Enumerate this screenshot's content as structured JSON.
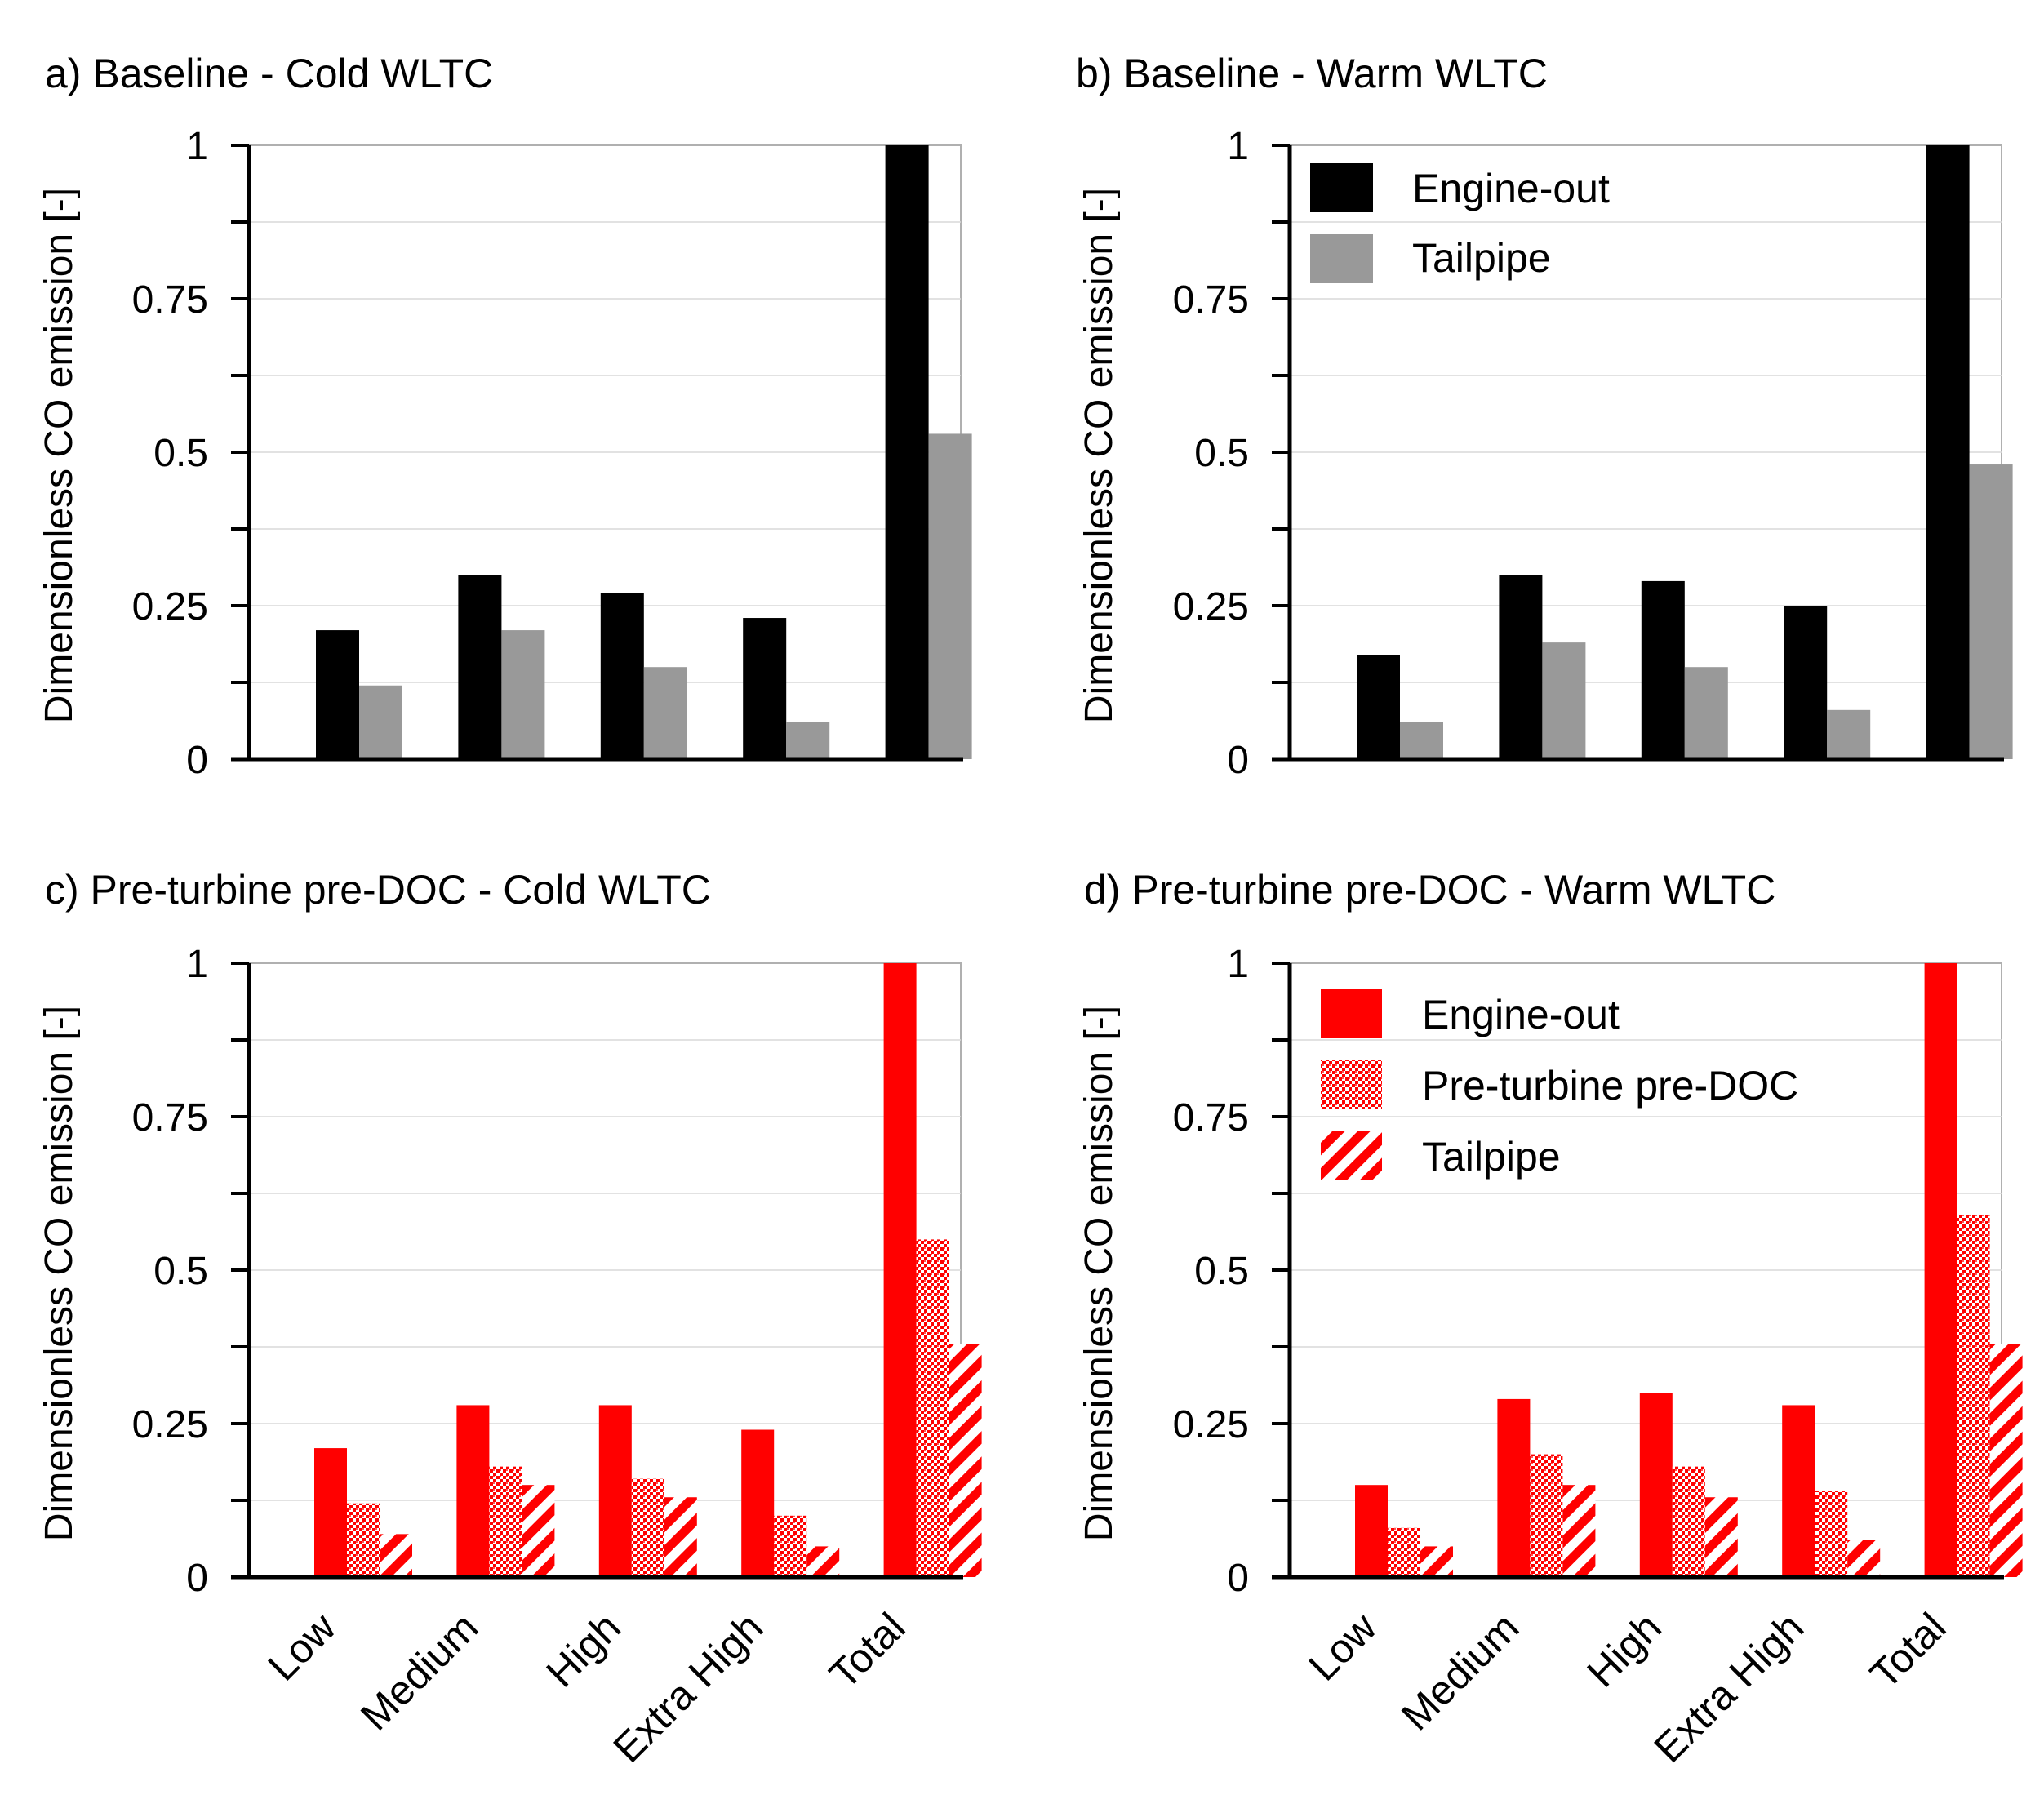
{
  "colors": {
    "engine_out_baseline": "#000000",
    "tailpipe_baseline": "#999999",
    "red": "#ff0000",
    "axis": "#000000",
    "grid": "#d9d9d9"
  },
  "chart_data": [
    {
      "id": "a",
      "type": "bar",
      "title": "a) Baseline - Cold WLTC",
      "ylabel": "Dimensionless CO emission [-]",
      "ylim": [
        0,
        1
      ],
      "yticks": [
        "0",
        "0.25",
        "0.5",
        "0.75",
        "1"
      ],
      "categories": [
        "Low",
        "Medium",
        "High",
        "Extra High",
        "Total"
      ],
      "show_category_labels": false,
      "legend": false,
      "series": [
        {
          "name": "Engine-out",
          "style": "solid-black",
          "values": [
            0.21,
            0.3,
            0.27,
            0.23,
            1.0
          ]
        },
        {
          "name": "Tailpipe",
          "style": "solid-grey",
          "values": [
            0.12,
            0.21,
            0.15,
            0.06,
            0.53
          ]
        }
      ]
    },
    {
      "id": "b",
      "type": "bar",
      "title": "b) Baseline - Warm WLTC",
      "ylabel": "Dimensionless CO emission [-]",
      "ylim": [
        0,
        1
      ],
      "yticks": [
        "0",
        "0.25",
        "0.5",
        "0.75",
        "1"
      ],
      "categories": [
        "Low",
        "Medium",
        "High",
        "Extra High",
        "Total"
      ],
      "show_category_labels": false,
      "legend": true,
      "series": [
        {
          "name": "Engine-out",
          "style": "solid-black",
          "values": [
            0.17,
            0.3,
            0.29,
            0.25,
            1.0
          ]
        },
        {
          "name": "Tailpipe",
          "style": "solid-grey",
          "values": [
            0.06,
            0.19,
            0.15,
            0.08,
            0.48
          ]
        }
      ]
    },
    {
      "id": "c",
      "type": "bar",
      "title": "c) Pre-turbine pre-DOC - Cold WLTC",
      "ylabel": "Dimensionless CO emission [-]",
      "ylim": [
        0,
        1
      ],
      "yticks": [
        "0",
        "0.25",
        "0.5",
        "0.75",
        "1"
      ],
      "categories": [
        "Low",
        "Medium",
        "High",
        "Extra High",
        "Total"
      ],
      "show_category_labels": true,
      "legend": false,
      "series": [
        {
          "name": "Engine-out",
          "style": "solid-red",
          "values": [
            0.21,
            0.28,
            0.28,
            0.24,
            1.0
          ]
        },
        {
          "name": "Pre-turbine pre-DOC",
          "style": "dots-red",
          "values": [
            0.12,
            0.18,
            0.16,
            0.1,
            0.55
          ]
        },
        {
          "name": "Tailpipe",
          "style": "hatch-red",
          "values": [
            0.07,
            0.15,
            0.13,
            0.05,
            0.38
          ]
        }
      ]
    },
    {
      "id": "d",
      "type": "bar",
      "title": "d) Pre-turbine pre-DOC - Warm WLTC",
      "ylabel": "Dimensionless CO emission [-]",
      "ylim": [
        0,
        1
      ],
      "yticks": [
        "0",
        "0.25",
        "0.5",
        "0.75",
        "1"
      ],
      "categories": [
        "Low",
        "Medium",
        "High",
        "Extra High",
        "Total"
      ],
      "show_category_labels": true,
      "legend": true,
      "series": [
        {
          "name": "Engine-out",
          "style": "solid-red",
          "values": [
            0.15,
            0.29,
            0.3,
            0.28,
            1.0
          ]
        },
        {
          "name": "Pre-turbine pre-DOC",
          "style": "dots-red",
          "values": [
            0.08,
            0.2,
            0.18,
            0.14,
            0.59
          ]
        },
        {
          "name": "Tailpipe",
          "style": "hatch-red",
          "values": [
            0.05,
            0.15,
            0.13,
            0.06,
            0.38
          ]
        }
      ]
    }
  ]
}
